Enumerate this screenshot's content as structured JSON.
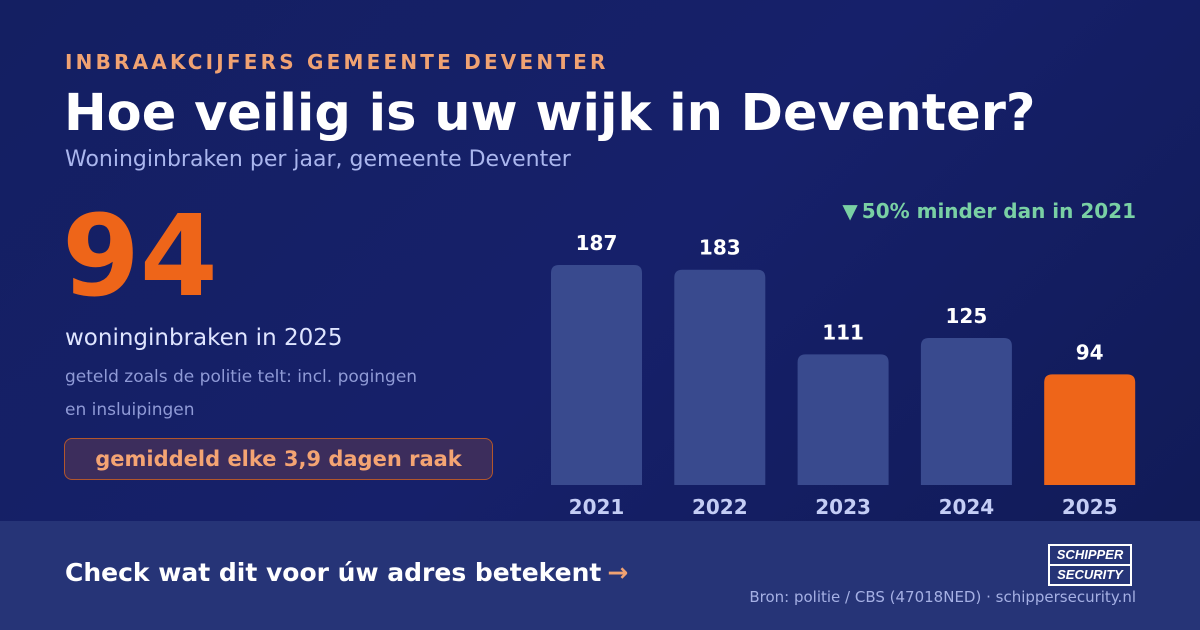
{
  "header": {
    "kicker": "INBRAAKCIJFERS GEMEENTE DEVENTER",
    "title": "Hoe veilig is uw wijk in Deventer?",
    "subtitle": "Woninginbraken per jaar, gemeente Deventer"
  },
  "highlight": {
    "number": "94",
    "caption": "woninginbraken in 2025",
    "note": "geteld zoals de politie telt: incl. pogingen en insluipingen",
    "pill": "gemiddeld elke 3,9 dagen raak"
  },
  "delta": {
    "symbol": "▼",
    "text": "50% minder dan in 2021"
  },
  "chart_data": {
    "type": "bar",
    "categories": [
      "2021",
      "2022",
      "2023",
      "2024",
      "2025"
    ],
    "values": [
      187,
      183,
      111,
      125,
      94
    ],
    "data_labels": [
      "187",
      "183",
      "111",
      "125",
      "94"
    ],
    "highlight_category": "2025",
    "title": "",
    "xlabel": "",
    "ylabel": "",
    "ylim": [
      0,
      187
    ],
    "grid": false,
    "colors": {
      "bar": "#394a8e",
      "highlight": "#ee6519",
      "label": "#ffffff",
      "tick": "#c4cdf5"
    }
  },
  "footer": {
    "cta": "Check wat dit voor úw adres betekent",
    "cta_arrow": "→",
    "logo_top": "SCHIPPER",
    "logo_bottom": "SECURITY",
    "source": "Bron: politie / CBS (47018NED) · schippersecurity.nl"
  }
}
